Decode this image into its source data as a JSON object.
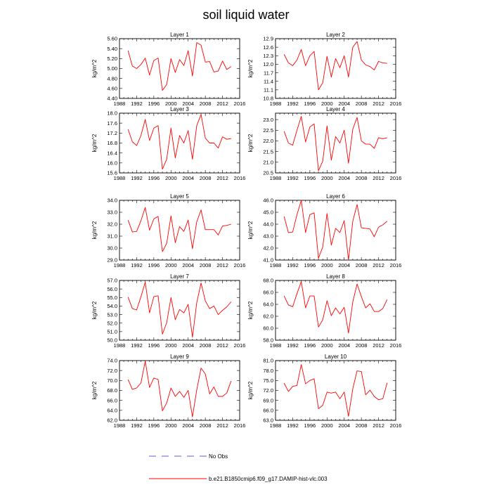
{
  "figure": {
    "title": "soil liquid water",
    "ylabel": "kg/m^2",
    "legend": [
      {
        "label": "No Obs",
        "color": "#6a5acd",
        "style": "dashed"
      },
      {
        "label": "b.e21.B1850cmip6.f09_g17.DAMIP-hist-vlc.003",
        "color": "#ff0000",
        "style": "solid"
      }
    ]
  },
  "chart_data": [
    {
      "type": "line",
      "title": "Layer 1",
      "ylabel": "kg/m^2",
      "xlim": [
        1988,
        2016
      ],
      "ylim": [
        4.4,
        5.6
      ],
      "xticks": [
        1988,
        1992,
        1996,
        2000,
        2004,
        2008,
        2012,
        2016
      ],
      "yticks": [
        "4.40",
        "4.60",
        "4.80",
        "5.00",
        "5.20",
        "5.40",
        "5.60"
      ],
      "series": [
        {
          "name": "b.e21.B1850cmip6.f09_g17.DAMIP-hist-vlc.003",
          "color": "#ff0000",
          "x": [
            1990,
            1991,
            1992,
            1993,
            1994,
            1995,
            1996,
            1997,
            1998,
            1999,
            2000,
            2001,
            2002,
            2003,
            2004,
            2005,
            2006,
            2007,
            2008,
            2009,
            2010,
            2011,
            2012,
            2013,
            2014
          ],
          "values": [
            5.36,
            5.05,
            5.0,
            5.08,
            5.21,
            4.87,
            5.16,
            5.21,
            4.56,
            4.68,
            5.2,
            4.92,
            5.18,
            5.06,
            5.36,
            4.85,
            5.52,
            5.47,
            5.13,
            5.14,
            4.93,
            4.95,
            5.15,
            4.98,
            5.04
          ]
        }
      ]
    },
    {
      "type": "line",
      "title": "Layer 2",
      "ylabel": "kg/m^2",
      "xlim": [
        1988,
        2016
      ],
      "ylim": [
        10.8,
        12.9
      ],
      "xticks": [
        1988,
        1992,
        1996,
        2000,
        2004,
        2008,
        2012,
        2016
      ],
      "yticks": [
        "10.8",
        "11.1",
        "11.4",
        "11.7",
        "12.0",
        "12.3",
        "12.6",
        "12.9"
      ],
      "series": [
        {
          "name": "b.e21.B1850cmip6.f09_g17.DAMIP-hist-vlc.003",
          "color": "#ff0000",
          "x": [
            1990,
            1991,
            1992,
            1993,
            1994,
            1995,
            1996,
            1997,
            1998,
            1999,
            2000,
            2001,
            2002,
            2003,
            2004,
            2005,
            2006,
            2007,
            2008,
            2009,
            2010,
            2011,
            2012,
            2013,
            2014
          ],
          "values": [
            12.35,
            12.05,
            11.95,
            12.15,
            12.52,
            11.95,
            12.3,
            12.45,
            11.1,
            11.35,
            12.28,
            11.55,
            12.2,
            11.88,
            12.3,
            11.55,
            12.6,
            12.8,
            12.15,
            11.98,
            11.92,
            11.8,
            12.1,
            12.05,
            12.03
          ]
        }
      ]
    },
    {
      "type": "line",
      "title": "Layer 3",
      "ylabel": "kg/m^2",
      "xlim": [
        1988,
        2016
      ],
      "ylim": [
        15.6,
        18.0
      ],
      "xticks": [
        1988,
        1992,
        1996,
        2000,
        2004,
        2008,
        2012,
        2016
      ],
      "yticks": [
        "15.6",
        "16.0",
        "16.4",
        "16.8",
        "17.2",
        "17.6",
        "18.0"
      ],
      "series": [
        {
          "name": "b.e21.B1850cmip6.f09_g17.DAMIP-hist-vlc.003",
          "color": "#ff0000",
          "x": [
            1990,
            1991,
            1992,
            1993,
            1994,
            1995,
            1996,
            1997,
            1998,
            1999,
            2000,
            2001,
            2002,
            2003,
            2004,
            2005,
            2006,
            2007,
            2008,
            2009,
            2010,
            2011,
            2012,
            2013,
            2014
          ],
          "values": [
            17.35,
            16.85,
            16.7,
            17.1,
            17.75,
            16.9,
            17.4,
            17.5,
            15.75,
            16.15,
            17.4,
            16.2,
            17.1,
            16.8,
            17.3,
            16.15,
            17.5,
            17.95,
            17.0,
            16.8,
            16.8,
            16.6,
            17.05,
            16.95,
            16.98
          ]
        }
      ]
    },
    {
      "type": "line",
      "title": "Layer 4",
      "ylabel": "kg/m^2",
      "xlim": [
        1988,
        2016
      ],
      "ylim": [
        20.5,
        23.3
      ],
      "xticks": [
        1988,
        1992,
        1996,
        2000,
        2004,
        2008,
        2012,
        2016
      ],
      "yticks": [
        "20.5",
        "21.0",
        "21.5",
        "22.0",
        "22.5",
        "23.0"
      ],
      "series": [
        {
          "name": "b.e21.B1850cmip6.f09_g17.DAMIP-hist-vlc.003",
          "color": "#ff0000",
          "x": [
            1990,
            1991,
            1992,
            1993,
            1994,
            1995,
            1996,
            1997,
            1998,
            1999,
            2000,
            2001,
            2002,
            2003,
            2004,
            2005,
            2006,
            2007,
            2008,
            2009,
            2010,
            2011,
            2012,
            2013,
            2014
          ],
          "values": [
            22.45,
            21.9,
            21.8,
            22.5,
            23.15,
            21.95,
            22.65,
            22.8,
            20.6,
            21.05,
            22.7,
            21.1,
            22.2,
            21.9,
            22.5,
            20.95,
            22.55,
            23.1,
            22.0,
            21.85,
            21.85,
            21.65,
            22.15,
            22.1,
            22.15
          ]
        }
      ]
    },
    {
      "type": "line",
      "title": "Layer 5",
      "ylabel": "kg/m^2",
      "xlim": [
        1988,
        2016
      ],
      "ylim": [
        29.0,
        34.0
      ],
      "xticks": [
        1988,
        1992,
        1996,
        2000,
        2004,
        2008,
        2012,
        2016
      ],
      "yticks": [
        "29.0",
        "30.0",
        "31.0",
        "32.0",
        "33.0",
        "34.0"
      ],
      "series": [
        {
          "name": "b.e21.B1850cmip6.f09_g17.DAMIP-hist-vlc.003",
          "color": "#ff0000",
          "x": [
            1990,
            1991,
            1992,
            1993,
            1994,
            1995,
            1996,
            1997,
            1998,
            1999,
            2000,
            2001,
            2002,
            2003,
            2004,
            2005,
            2006,
            2007,
            2008,
            2009,
            2010,
            2011,
            2012,
            2013,
            2014
          ],
          "values": [
            32.35,
            31.35,
            31.4,
            32.3,
            33.4,
            31.5,
            32.45,
            32.65,
            29.7,
            30.4,
            32.7,
            30.45,
            31.8,
            31.4,
            32.35,
            29.95,
            32.2,
            33.2,
            31.55,
            31.55,
            31.55,
            31.1,
            31.85,
            31.9,
            32.0
          ]
        }
      ]
    },
    {
      "type": "line",
      "title": "Layer 6",
      "ylabel": "kg/m^2",
      "xlim": [
        1988,
        2016
      ],
      "ylim": [
        41.0,
        46.0
      ],
      "xticks": [
        1988,
        1992,
        1996,
        2000,
        2004,
        2008,
        2012,
        2016
      ],
      "yticks": [
        "41.0",
        "42.0",
        "43.0",
        "44.0",
        "45.0",
        "46.0"
      ],
      "series": [
        {
          "name": "b.e21.B1850cmip6.f09_g17.DAMIP-hist-vlc.003",
          "color": "#ff0000",
          "x": [
            1990,
            1991,
            1992,
            1993,
            1994,
            1995,
            1996,
            1997,
            1998,
            1999,
            2000,
            2001,
            2002,
            2003,
            2004,
            2005,
            2006,
            2007,
            2008,
            2009,
            2010,
            2011,
            2012,
            2013,
            2014
          ],
          "values": [
            44.65,
            43.3,
            43.35,
            44.8,
            46.0,
            43.3,
            44.8,
            44.95,
            41.15,
            42.1,
            44.9,
            42.25,
            43.65,
            43.3,
            44.3,
            41.0,
            44.25,
            45.65,
            43.7,
            43.65,
            43.6,
            42.95,
            43.75,
            43.95,
            44.25
          ]
        }
      ]
    },
    {
      "type": "line",
      "title": "Layer 7",
      "ylabel": "kg/m^2",
      "xlim": [
        1988,
        2016
      ],
      "ylim": [
        50.0,
        57.0
      ],
      "xticks": [
        1988,
        1992,
        1996,
        2000,
        2004,
        2008,
        2012,
        2016
      ],
      "yticks": [
        "50.0",
        "51.0",
        "52.0",
        "53.0",
        "54.0",
        "55.0",
        "56.0",
        "57.0"
      ],
      "series": [
        {
          "name": "b.e21.B1850cmip6.f09_g17.DAMIP-hist-vlc.003",
          "color": "#ff0000",
          "x": [
            1990,
            1991,
            1992,
            1993,
            1994,
            1995,
            1996,
            1997,
            1998,
            1999,
            2000,
            2001,
            2002,
            2003,
            2004,
            2005,
            2006,
            2007,
            2008,
            2009,
            2010,
            2011,
            2012,
            2013,
            2014
          ],
          "values": [
            55.05,
            53.7,
            53.55,
            55.1,
            56.8,
            53.2,
            55.1,
            55.2,
            50.7,
            52.05,
            55.0,
            52.4,
            53.6,
            53.2,
            54.2,
            50.35,
            54.4,
            56.7,
            54.6,
            53.7,
            54.0,
            53.0,
            53.5,
            53.9,
            54.5
          ]
        }
      ]
    },
    {
      "type": "line",
      "title": "Layer 8",
      "ylabel": "kg/m^2",
      "xlim": [
        1988,
        2016
      ],
      "ylim": [
        58.0,
        68.0
      ],
      "xticks": [
        1988,
        1992,
        1996,
        2000,
        2004,
        2008,
        2012,
        2016
      ],
      "yticks": [
        "58.0",
        "60.0",
        "62.0",
        "64.0",
        "66.0",
        "68.0"
      ],
      "series": [
        {
          "name": "b.e21.B1850cmip6.f09_g17.DAMIP-hist-vlc.003",
          "color": "#ff0000",
          "x": [
            1990,
            1991,
            1992,
            1993,
            1994,
            1995,
            1996,
            1997,
            1998,
            1999,
            2000,
            2001,
            2002,
            2003,
            2004,
            2005,
            2006,
            2007,
            2008,
            2009,
            2010,
            2011,
            2012,
            2013,
            2014
          ],
          "values": [
            65.4,
            63.9,
            63.6,
            65.8,
            67.8,
            63.4,
            65.4,
            65.4,
            60.2,
            61.4,
            64.6,
            62.1,
            63.4,
            62.4,
            63.5,
            59.2,
            64.4,
            67.4,
            65.3,
            63.4,
            64.1,
            62.8,
            62.8,
            63.3,
            64.8
          ]
        }
      ]
    },
    {
      "type": "line",
      "title": "Layer 9",
      "ylabel": "kg/m^2",
      "xlim": [
        1988,
        2016
      ],
      "ylim": [
        62.0,
        74.0
      ],
      "xticks": [
        1988,
        1992,
        1996,
        2000,
        2004,
        2008,
        2012,
        2016
      ],
      "yticks": [
        "62.0",
        "64.0",
        "66.0",
        "68.0",
        "70.0",
        "72.0",
        "74.0"
      ],
      "series": [
        {
          "name": "b.e21.B1850cmip6.f09_g17.DAMIP-hist-vlc.003",
          "color": "#ff0000",
          "x": [
            1990,
            1991,
            1992,
            1993,
            1994,
            1995,
            1996,
            1997,
            1998,
            1999,
            2000,
            2001,
            2002,
            2003,
            2004,
            2005,
            2006,
            2007,
            2008,
            2009,
            2010,
            2011,
            2012,
            2013,
            2014
          ],
          "values": [
            70.2,
            68.2,
            68.5,
            69.5,
            73.9,
            68.6,
            70.5,
            70.2,
            63.9,
            65.5,
            68.5,
            66.8,
            67.8,
            66.6,
            68.0,
            62.7,
            68.1,
            72.5,
            71.3,
            67.3,
            68.7,
            66.8,
            66.8,
            67.5,
            69.9
          ]
        }
      ]
    },
    {
      "type": "line",
      "title": "Layer 10",
      "ylabel": "kg/m^2",
      "xlim": [
        1988,
        2016
      ],
      "ylim": [
        63.0,
        81.0
      ],
      "xticks": [
        1988,
        1992,
        1996,
        2000,
        2004,
        2008,
        2012,
        2016
      ],
      "yticks": [
        "63.0",
        "66.0",
        "69.0",
        "72.0",
        "75.0",
        "78.0",
        "81.0"
      ],
      "series": [
        {
          "name": "b.e21.B1850cmip6.f09_g17.DAMIP-hist-vlc.003",
          "color": "#ff0000",
          "x": [
            1990,
            1991,
            1992,
            1993,
            1994,
            1995,
            1996,
            1997,
            1998,
            1999,
            2000,
            2001,
            2002,
            2003,
            2004,
            2005,
            2006,
            2007,
            2008,
            2009,
            2010,
            2011,
            2012,
            2013,
            2014
          ],
          "values": [
            74.2,
            71.7,
            73.2,
            73.5,
            79.8,
            74.0,
            75.0,
            75.5,
            66.5,
            67.5,
            71.5,
            71.2,
            71.5,
            69.5,
            71.5,
            64.2,
            72.5,
            77.9,
            77.7,
            70.7,
            72.1,
            70.2,
            69.2,
            69.5,
            74.3
          ]
        }
      ]
    }
  ]
}
